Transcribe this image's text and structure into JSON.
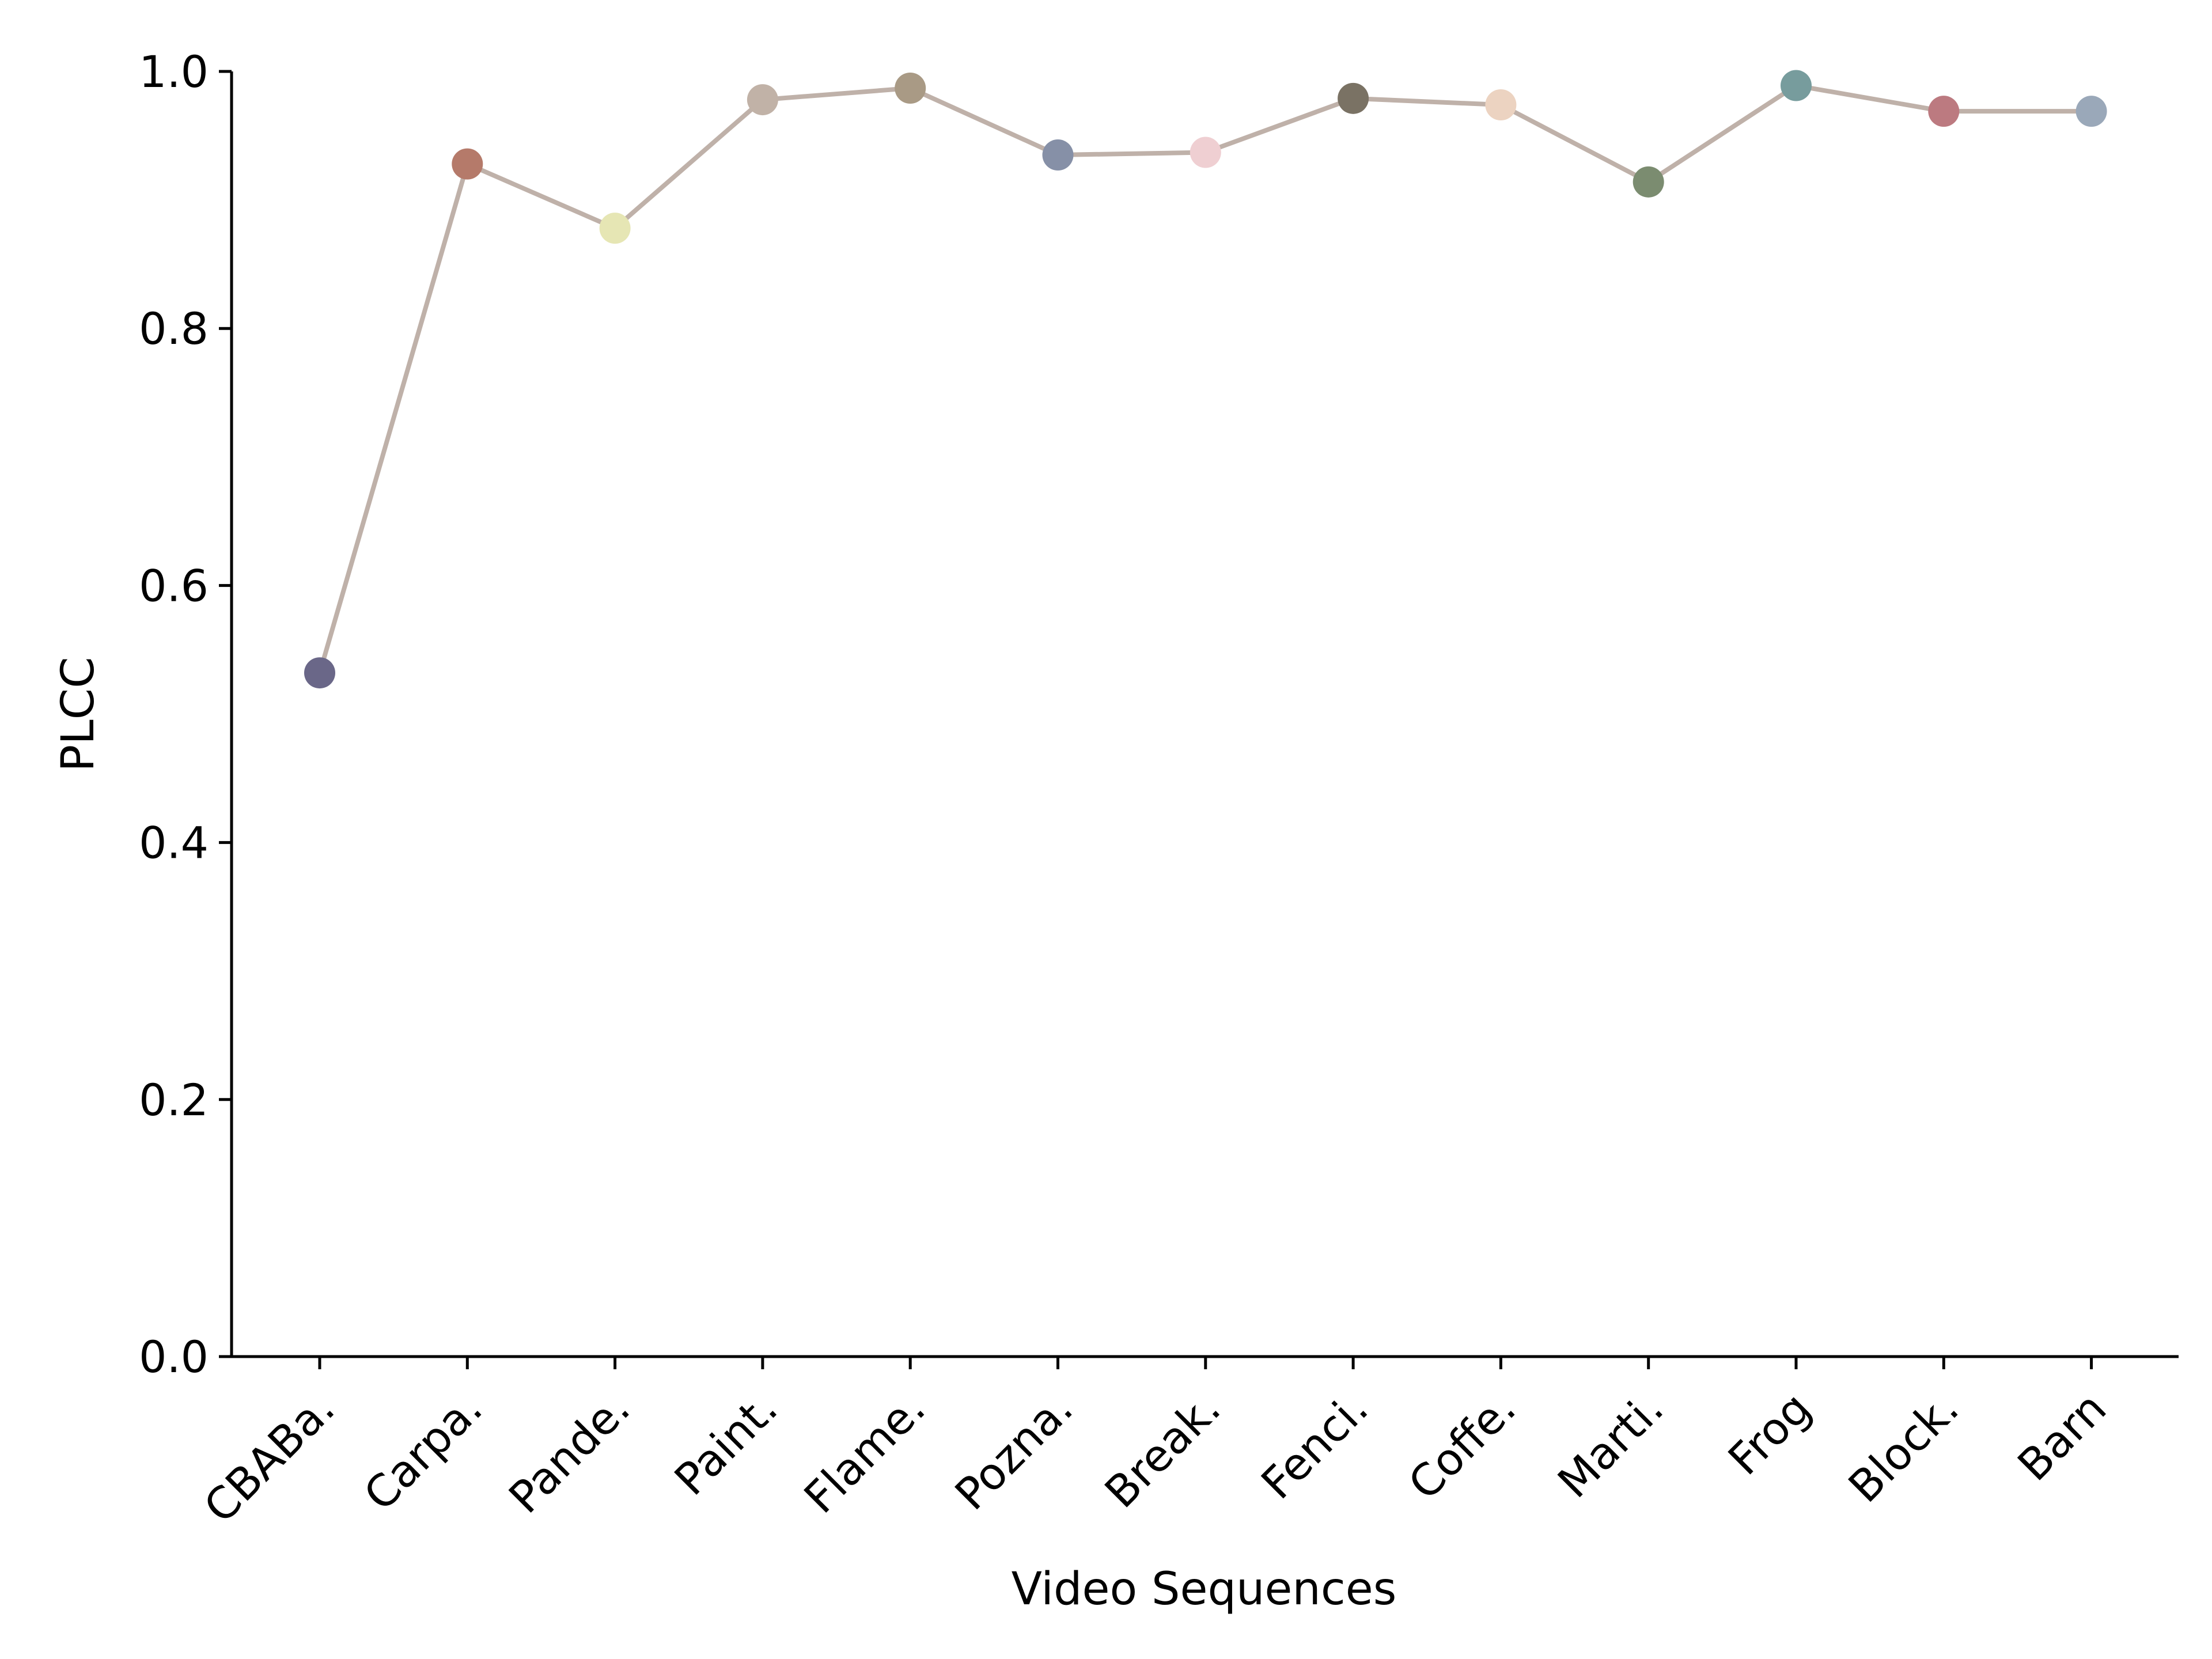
{
  "chart_data": {
    "type": "line",
    "title": "",
    "xlabel": "Video Sequences",
    "ylabel": "PLCC",
    "ylim": [
      0.0,
      1.0
    ],
    "yticks": [
      "0.0",
      "0.2",
      "0.4",
      "0.6",
      "0.8",
      "1.0"
    ],
    "grid": false,
    "legend": "none",
    "line_color": "#bfb1a9",
    "categories": [
      "CBABa.",
      "Carpa.",
      "Pande.",
      "Paint.",
      "Flame.",
      "Pozna.",
      "Break.",
      "Fenci.",
      "Coffe.",
      "Marti.",
      "Frog",
      "Block.",
      "Barn"
    ],
    "values": [
      0.532,
      0.928,
      0.878,
      0.978,
      0.987,
      0.935,
      0.937,
      0.979,
      0.974,
      0.914,
      0.989,
      0.969,
      0.969
    ],
    "point_colors": [
      "#6a6788",
      "#b57a6a",
      "#e6e6b4",
      "#c1b2a7",
      "#a99a85",
      "#8690a7",
      "#efcfd2",
      "#7a7264",
      "#ecd3c1",
      "#7b8c70",
      "#779c9d",
      "#bc7a80",
      "#9aa8b9"
    ]
  }
}
